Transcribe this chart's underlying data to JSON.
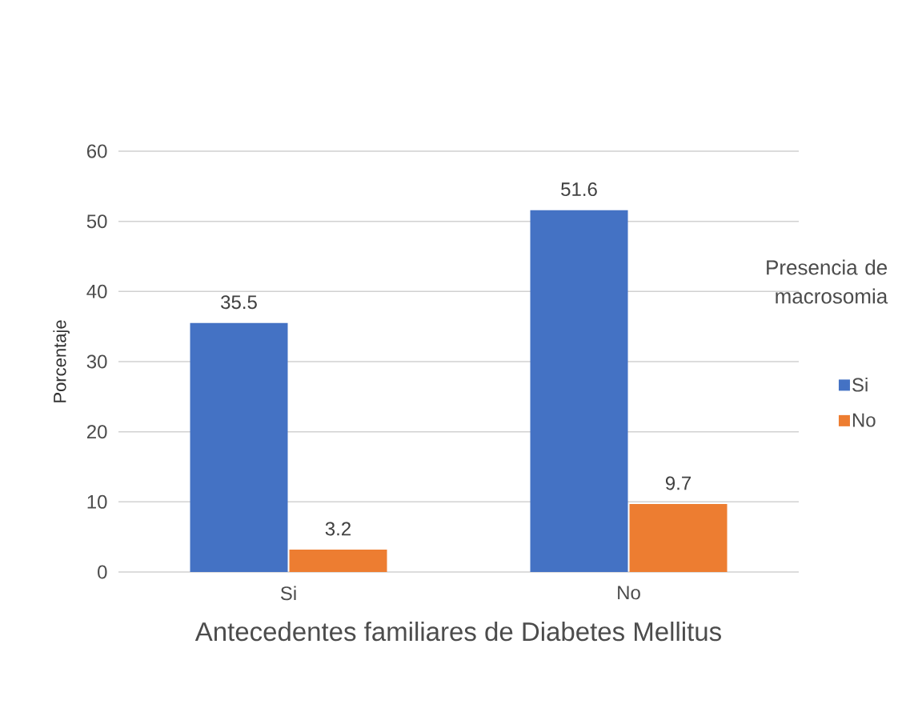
{
  "chart_data": {
    "type": "bar",
    "xlabel": "Antecedentes familiares de Diabetes Mellitus",
    "ylabel": "Porcentaje",
    "legend_title": "Presencia de macrosomia",
    "categories": [
      "Si",
      "No"
    ],
    "series": [
      {
        "name": "Si",
        "color": "#4472c4",
        "values": [
          35.5,
          51.6
        ]
      },
      {
        "name": "No",
        "color": "#ed7d31",
        "values": [
          3.2,
          9.7
        ]
      }
    ],
    "ylim": [
      0,
      60
    ],
    "yticks": [
      0,
      10,
      20,
      30,
      40,
      50,
      60
    ],
    "grid": "y",
    "legend": "right",
    "data_labels": true
  }
}
